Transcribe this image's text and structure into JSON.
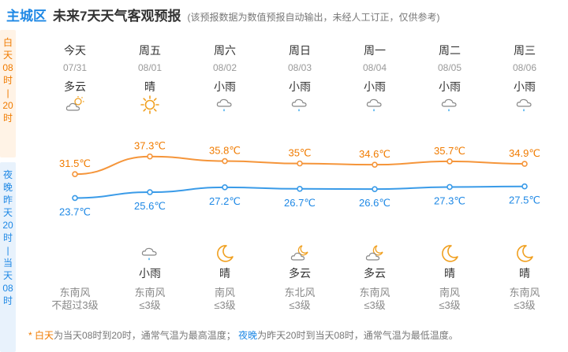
{
  "header": {
    "area": "主城区",
    "title": "未来7天天气客观预报",
    "note": "(该预报数据为数值预报自动输出，未经人工订正，仅供参考)"
  },
  "side": {
    "day_label": [
      "白",
      "天",
      "08",
      "时",
      "|",
      "20",
      "时"
    ],
    "night_label": [
      "夜",
      "晚",
      "昨",
      "天",
      "20",
      "时",
      "|",
      "当",
      "天",
      "08",
      "时"
    ]
  },
  "colors": {
    "accent_blue": "#1e88e5",
    "accent_orange": "#f07b00",
    "high_line": "#f5953a",
    "low_line": "#3a9be8"
  },
  "days": [
    {
      "name": "今天",
      "date": "07/31",
      "day_weather": "多云",
      "day_icon": "partly-cloudy-icon",
      "high": "31.5℃",
      "low": "23.7℃",
      "night_weather": "",
      "night_icon": "",
      "wind_dir": "东南风",
      "wind_level": "不超过3级"
    },
    {
      "name": "周五",
      "date": "08/01",
      "day_weather": "晴",
      "day_icon": "sun-icon",
      "high": "37.3℃",
      "low": "25.6℃",
      "night_weather": "小雨",
      "night_icon": "light-rain-icon",
      "wind_dir": "东南风",
      "wind_level": "≤3级"
    },
    {
      "name": "周六",
      "date": "08/02",
      "day_weather": "小雨",
      "day_icon": "light-rain-icon",
      "high": "35.8℃",
      "low": "27.2℃",
      "night_weather": "晴",
      "night_icon": "moon-icon",
      "wind_dir": "南风",
      "wind_level": "≤3级"
    },
    {
      "name": "周日",
      "date": "08/03",
      "day_weather": "小雨",
      "day_icon": "light-rain-icon",
      "high": "35℃",
      "low": "26.7℃",
      "night_weather": "多云",
      "night_icon": "cloudy-night-icon",
      "wind_dir": "东北风",
      "wind_level": "≤3级"
    },
    {
      "name": "周一",
      "date": "08/04",
      "day_weather": "小雨",
      "day_icon": "light-rain-icon",
      "high": "34.6℃",
      "low": "26.6℃",
      "night_weather": "多云",
      "night_icon": "cloudy-night-icon",
      "wind_dir": "东南风",
      "wind_level": "≤3级"
    },
    {
      "name": "周二",
      "date": "08/05",
      "day_weather": "小雨",
      "day_icon": "light-rain-icon",
      "high": "35.7℃",
      "low": "27.3℃",
      "night_weather": "晴",
      "night_icon": "moon-icon",
      "wind_dir": "南风",
      "wind_level": "≤3级"
    },
    {
      "name": "周三",
      "date": "08/06",
      "day_weather": "小雨",
      "day_icon": "light-rain-icon",
      "high": "34.9℃",
      "low": "27.5℃",
      "night_weather": "晴",
      "night_icon": "moon-icon",
      "wind_dir": "东南风",
      "wind_level": "≤3级"
    }
  ],
  "chart_data": {
    "type": "line",
    "categories": [
      "07/31",
      "08/01",
      "08/02",
      "08/03",
      "08/04",
      "08/05",
      "08/06"
    ],
    "series": [
      {
        "values": [
          31.5,
          37.3,
          35.8,
          35,
          34.6,
          35.7,
          34.9
        ]
      },
      {
        "values": [
          23.7,
          25.6,
          27.2,
          26.7,
          26.6,
          27.3,
          27.5
        ]
      }
    ]
  },
  "footer": {
    "star": "*",
    "day_kw": "白天",
    "day_text": "为当天08时到20时，通常气温为最高温度；",
    "night_kw": "夜晚",
    "night_text": "为昨天20时到当天08时，通常气温为最低温度。"
  }
}
